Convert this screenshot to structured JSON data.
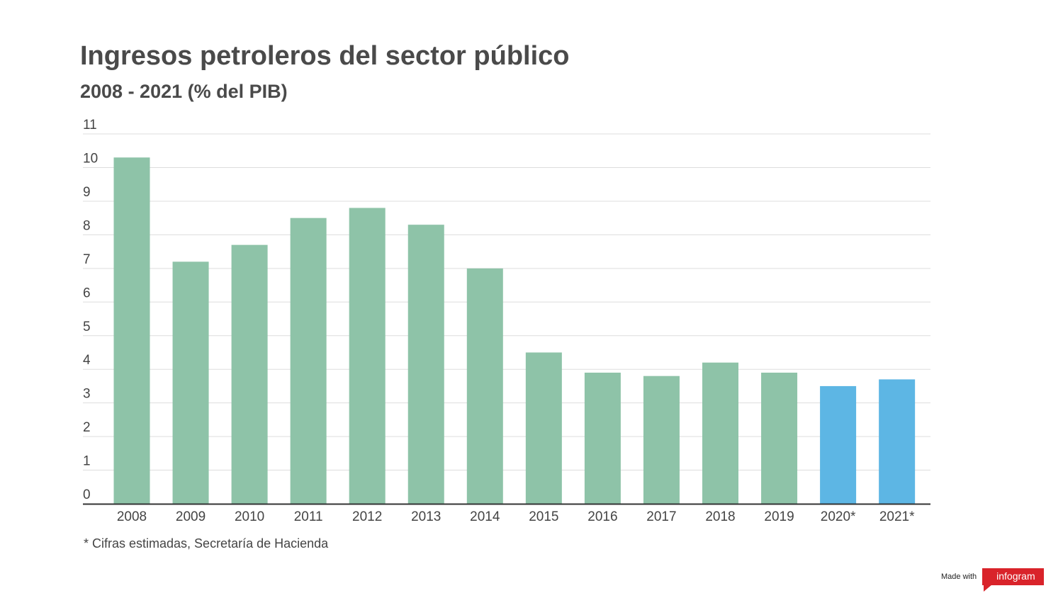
{
  "header": {
    "title": "Ingresos petroleros del sector público",
    "subtitle": "2008 - 2021 (% del PIB)"
  },
  "footer": {
    "note": "* Cifras estimadas, Secretaría de Hacienda",
    "credit_text": "Made with",
    "credit_brand": "infogram"
  },
  "colors": {
    "actual_bar": "#8ec3a8",
    "estimated_bar": "#5db6e4",
    "gridline": "#dddddd",
    "baseline": "#333333",
    "text": "#444444",
    "brand": "#d9232a"
  },
  "chart_data": {
    "type": "bar",
    "title": "Ingresos petroleros del sector público",
    "subtitle": "2008 - 2021 (% del PIB)",
    "categories": [
      "2008",
      "2009",
      "2010",
      "2011",
      "2012",
      "2013",
      "2014",
      "2015",
      "2016",
      "2017",
      "2018",
      "2019",
      "2020*",
      "2021*"
    ],
    "values": [
      10.3,
      7.2,
      7.7,
      8.5,
      8.8,
      8.3,
      7.0,
      4.5,
      3.9,
      3.8,
      4.2,
      3.9,
      3.5,
      3.7
    ],
    "estimated": [
      false,
      false,
      false,
      false,
      false,
      false,
      false,
      false,
      false,
      false,
      false,
      false,
      true,
      true
    ],
    "ylim": [
      0,
      11
    ],
    "yticks": [
      0,
      1,
      2,
      3,
      4,
      5,
      6,
      7,
      8,
      9,
      10,
      11
    ],
    "grid": true,
    "xlabel": "",
    "ylabel": ""
  }
}
